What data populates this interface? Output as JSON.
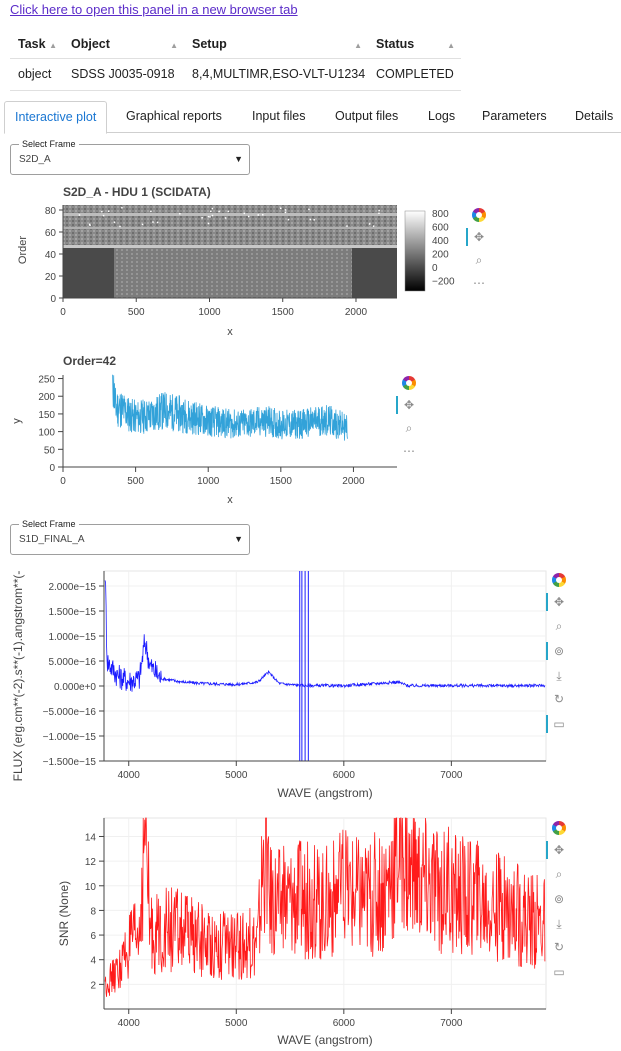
{
  "link_text": "Click here to open this panel in a new browser tab",
  "summary_table": {
    "headers": [
      "Task",
      "Object",
      "Setup",
      "Status"
    ],
    "rows": [
      [
        "object",
        "SDSS J0035-0918",
        "8,4,MULTIMR,ESO-VLT-U1234",
        "COMPLETED"
      ]
    ]
  },
  "tabs": [
    {
      "label": "Interactive plot",
      "active": true
    },
    {
      "label": "Graphical reports"
    },
    {
      "label": "Input files"
    },
    {
      "label": "Output files"
    },
    {
      "label": "Logs"
    },
    {
      "label": "Parameters"
    },
    {
      "label": "Details"
    }
  ],
  "select_frame_1": {
    "label": "Select Frame",
    "value": "S2D_A"
  },
  "select_frame_2": {
    "label": "Select Frame",
    "value": "S1D_FINAL_A"
  },
  "plot_2d": {
    "title": "S2D_A - HDU 1 (SCIDATA)",
    "xlabel": "x",
    "ylabel": "Order",
    "xticks": [
      "0",
      "500",
      "1000",
      "1500",
      "2000"
    ],
    "yticks": [
      "0",
      "20",
      "40",
      "60",
      "80"
    ],
    "colorbar_ticks": [
      "800",
      "600",
      "400",
      "200",
      "0",
      "−200"
    ]
  },
  "chart_data": [
    {
      "type": "line",
      "title": "Order=42",
      "xlabel": "x",
      "ylabel": "y",
      "xlim": [
        0,
        2300
      ],
      "ylim": [
        0,
        260
      ],
      "xticks": [
        "0",
        "500",
        "1000",
        "1500",
        "2000"
      ],
      "yticks": [
        "0",
        "50",
        "100",
        "150",
        "200",
        "250"
      ],
      "color": "#32a2d9",
      "series": [
        {
          "x": [
            340,
            360,
            400,
            450,
            500,
            600,
            700,
            800,
            900,
            1000,
            1100,
            1200,
            1300,
            1400,
            1500,
            1600,
            1700,
            1800,
            1900,
            1960
          ],
          "y": [
            260,
            170,
            165,
            150,
            140,
            145,
            160,
            150,
            140,
            130,
            125,
            120,
            125,
            130,
            120,
            120,
            125,
            135,
            120,
            110
          ]
        }
      ]
    },
    {
      "type": "line",
      "title": "",
      "xlabel": "WAVE (angstrom)",
      "ylabel": "FLUX (erg.cm**(-2).s**(-1).angstrom**(-",
      "xlim": [
        3770,
        7880
      ],
      "ylim": [
        -1.5e-15,
        2.3e-15
      ],
      "xticks": [
        "4000",
        "5000",
        "6000",
        "7000"
      ],
      "yticks": [
        "2.000e−15",
        "1.500e−15",
        "1.000e−15",
        "5.000e−16",
        "0.000e+0",
        "−5.000e−16",
        "−1.000e−15",
        "−1.500e−15"
      ],
      "color": "#1a1aff",
      "series": [
        {
          "x": [
            3780,
            3800,
            3900,
            4000,
            4100,
            4150,
            4200,
            4300,
            4500,
            4700,
            5000,
            5200,
            5300,
            5400,
            5600,
            6000,
            6500,
            6600,
            7000,
            7500,
            7870
          ],
          "y": [
            2.3e-15,
            5e-16,
            2e-16,
            1e-16,
            1.5e-16,
            9e-16,
            4e-16,
            1.5e-16,
            8e-17,
            5e-17,
            3e-17,
            8e-17,
            2.8e-16,
            5e-17,
            1e-17,
            5e-18,
            8e-17,
            5e-18,
            1e-17,
            5e-18,
            1e-17
          ]
        }
      ]
    },
    {
      "type": "line",
      "title": "",
      "xlabel": "WAVE (angstrom)",
      "ylabel": "SNR (None)",
      "xlim": [
        3770,
        7880
      ],
      "ylim": [
        0,
        15.5
      ],
      "xticks": [
        "4000",
        "5000",
        "6000",
        "7000"
      ],
      "yticks": [
        "2",
        "4",
        "6",
        "8",
        "10",
        "12",
        "14"
      ],
      "color": "#ff1a1a",
      "series": [
        {
          "x": [
            3780,
            3900,
            4000,
            4100,
            4150,
            4200,
            4400,
            4700,
            5000,
            5200,
            5280,
            5300,
            5400,
            5600,
            5800,
            6000,
            6200,
            6400,
            6500,
            6550,
            6600,
            6800,
            7000,
            7200,
            7500,
            7870
          ],
          "y": [
            2,
            3,
            5,
            6,
            15.5,
            6,
            6.5,
            5.5,
            5,
            5.5,
            15.5,
            9,
            8.5,
            9,
            8.5,
            9.5,
            9,
            10,
            13,
            15,
            11,
            10,
            9.5,
            9,
            8,
            7
          ]
        }
      ]
    }
  ],
  "toolbar_icons": [
    "bokeh-logo",
    "pan-icon",
    "box-zoom-icon",
    "more-icon"
  ],
  "toolbar_icons_long": [
    "bokeh-logo",
    "pan-icon",
    "box-zoom-icon",
    "hover-icon",
    "save-icon",
    "reset-icon",
    "comment-icon"
  ]
}
